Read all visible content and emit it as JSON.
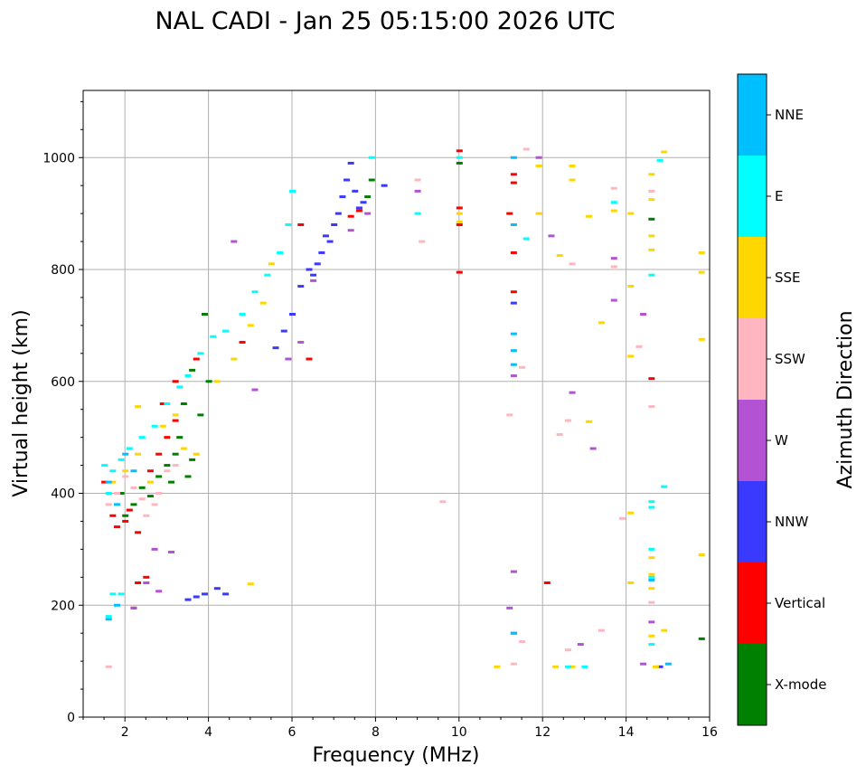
{
  "chart_data": {
    "type": "scatter",
    "title": "NAL CADI - Jan 25 05:15:00 2026 UTC",
    "xlabel": "Frequency (MHz)",
    "ylabel": "Virtual height (km)",
    "xlim": [
      1,
      16
    ],
    "ylim": [
      0,
      1120
    ],
    "xticks": [
      2,
      4,
      6,
      8,
      10,
      12,
      14,
      16
    ],
    "yticks": [
      0,
      200,
      400,
      600,
      800,
      1000
    ],
    "grid": true,
    "colorbar": {
      "title": "Azimuth Direction",
      "categories": [
        {
          "name": "X-mode",
          "color": "#008000"
        },
        {
          "name": "Vertical",
          "color": "#ff0000"
        },
        {
          "name": "NNW",
          "color": "#3a3aff"
        },
        {
          "name": "W",
          "color": "#b452d4"
        },
        {
          "name": "SSW",
          "color": "#ffb6c1"
        },
        {
          "name": "SSE",
          "color": "#ffd700"
        },
        {
          "name": "E",
          "color": "#00ffff"
        },
        {
          "name": "NNE",
          "color": "#00bfff"
        }
      ]
    },
    "series": [
      {
        "name": "X-mode",
        "points": [
          [
            1.9,
            400
          ],
          [
            2.0,
            360
          ],
          [
            2.2,
            380
          ],
          [
            2.4,
            410
          ],
          [
            2.6,
            395
          ],
          [
            2.8,
            430
          ],
          [
            3.0,
            450
          ],
          [
            3.1,
            420
          ],
          [
            3.2,
            470
          ],
          [
            3.3,
            500
          ],
          [
            3.5,
            430
          ],
          [
            3.6,
            460
          ],
          [
            3.4,
            560
          ],
          [
            3.8,
            540
          ],
          [
            4.0,
            600
          ],
          [
            3.9,
            720
          ],
          [
            3.6,
            620
          ],
          [
            7.8,
            930
          ],
          [
            7.9,
            960
          ],
          [
            10.0,
            990
          ],
          [
            14.6,
            890
          ],
          [
            15.8,
            140
          ]
        ]
      },
      {
        "name": "Vertical",
        "points": [
          [
            1.5,
            420
          ],
          [
            1.7,
            360
          ],
          [
            1.8,
            340
          ],
          [
            2.0,
            350
          ],
          [
            2.1,
            370
          ],
          [
            2.3,
            330
          ],
          [
            2.6,
            440
          ],
          [
            2.8,
            470
          ],
          [
            3.0,
            500
          ],
          [
            2.9,
            560
          ],
          [
            3.2,
            530
          ],
          [
            3.5,
            610
          ],
          [
            3.7,
            640
          ],
          [
            3.2,
            600
          ],
          [
            2.2,
            195
          ],
          [
            2.3,
            240
          ],
          [
            2.5,
            250
          ],
          [
            4.8,
            670
          ],
          [
            6.2,
            880
          ],
          [
            6.4,
            640
          ],
          [
            7.4,
            895
          ],
          [
            7.6,
            905
          ],
          [
            10.0,
            1012
          ],
          [
            10.0,
            910
          ],
          [
            10.0,
            880
          ],
          [
            10.0,
            795
          ],
          [
            11.2,
            900
          ],
          [
            11.3,
            970
          ],
          [
            11.3,
            955
          ],
          [
            11.3,
            830
          ],
          [
            11.3,
            760
          ],
          [
            12.1,
            240
          ],
          [
            14.6,
            605
          ]
        ]
      },
      {
        "name": "NNW",
        "points": [
          [
            3.5,
            210
          ],
          [
            3.7,
            215
          ],
          [
            3.9,
            220
          ],
          [
            4.2,
            230
          ],
          [
            4.4,
            220
          ],
          [
            5.6,
            660
          ],
          [
            5.8,
            690
          ],
          [
            6.0,
            720
          ],
          [
            6.2,
            770
          ],
          [
            6.4,
            800
          ],
          [
            6.5,
            790
          ],
          [
            6.6,
            810
          ],
          [
            6.7,
            830
          ],
          [
            6.8,
            860
          ],
          [
            6.9,
            850
          ],
          [
            7.0,
            880
          ],
          [
            7.1,
            900
          ],
          [
            7.2,
            930
          ],
          [
            7.3,
            960
          ],
          [
            7.4,
            990
          ],
          [
            7.5,
            940
          ],
          [
            7.6,
            910
          ],
          [
            7.7,
            920
          ],
          [
            8.2,
            950
          ],
          [
            11.3,
            740
          ],
          [
            11.3,
            150
          ],
          [
            14.8,
            90
          ]
        ]
      },
      {
        "name": "W",
        "points": [
          [
            2.2,
            195
          ],
          [
            2.5,
            240
          ],
          [
            2.7,
            300
          ],
          [
            3.1,
            295
          ],
          [
            2.8,
            225
          ],
          [
            4.6,
            850
          ],
          [
            5.1,
            585
          ],
          [
            5.9,
            640
          ],
          [
            6.2,
            670
          ],
          [
            6.5,
            780
          ],
          [
            7.4,
            870
          ],
          [
            7.8,
            900
          ],
          [
            9.0,
            940
          ],
          [
            11.3,
            610
          ],
          [
            11.3,
            260
          ],
          [
            11.2,
            195
          ],
          [
            11.9,
            1000
          ],
          [
            12.2,
            860
          ],
          [
            12.7,
            580
          ],
          [
            12.9,
            130
          ],
          [
            13.2,
            480
          ],
          [
            13.7,
            820
          ],
          [
            13.7,
            745
          ],
          [
            14.4,
            720
          ],
          [
            14.4,
            95
          ],
          [
            14.6,
            170
          ]
        ]
      },
      {
        "name": "SSW",
        "points": [
          [
            1.6,
            380
          ],
          [
            1.8,
            400
          ],
          [
            2.0,
            430
          ],
          [
            2.2,
            410
          ],
          [
            2.4,
            390
          ],
          [
            2.6,
            420
          ],
          [
            2.8,
            400
          ],
          [
            3.0,
            440
          ],
          [
            2.5,
            360
          ],
          [
            2.7,
            380
          ],
          [
            3.2,
            450
          ],
          [
            1.6,
            90
          ],
          [
            9.0,
            960
          ],
          [
            9.1,
            850
          ],
          [
            9.6,
            385
          ],
          [
            11.2,
            540
          ],
          [
            11.5,
            625
          ],
          [
            11.6,
            1015
          ],
          [
            11.3,
            95
          ],
          [
            11.5,
            135
          ],
          [
            12.4,
            505
          ],
          [
            12.6,
            530
          ],
          [
            12.7,
            810
          ],
          [
            12.6,
            120
          ],
          [
            13.4,
            155
          ],
          [
            13.7,
            945
          ],
          [
            13.7,
            805
          ],
          [
            13.9,
            355
          ],
          [
            14.3,
            662
          ],
          [
            14.6,
            940
          ],
          [
            14.6,
            555
          ],
          [
            14.6,
            205
          ]
        ]
      },
      {
        "name": "SSE",
        "points": [
          [
            1.7,
            420
          ],
          [
            2.0,
            440
          ],
          [
            2.3,
            470
          ],
          [
            2.6,
            420
          ],
          [
            2.9,
            520
          ],
          [
            3.2,
            540
          ],
          [
            3.4,
            480
          ],
          [
            3.7,
            470
          ],
          [
            2.3,
            555
          ],
          [
            4.2,
            600
          ],
          [
            4.6,
            640
          ],
          [
            5.0,
            700
          ],
          [
            5.3,
            740
          ],
          [
            5.5,
            810
          ],
          [
            5.0,
            238
          ],
          [
            10.0,
            900
          ],
          [
            10.0,
            885
          ],
          [
            10.9,
            90
          ],
          [
            11.9,
            900
          ],
          [
            11.9,
            985
          ],
          [
            12.3,
            90
          ],
          [
            12.4,
            825
          ],
          [
            12.7,
            985
          ],
          [
            12.7,
            960
          ],
          [
            12.7,
            90
          ],
          [
            13.1,
            895
          ],
          [
            13.1,
            528
          ],
          [
            13.4,
            705
          ],
          [
            13.7,
            905
          ],
          [
            14.1,
            900
          ],
          [
            14.1,
            770
          ],
          [
            14.1,
            645
          ],
          [
            14.1,
            365
          ],
          [
            14.1,
            240
          ],
          [
            14.6,
            970
          ],
          [
            14.6,
            925
          ],
          [
            14.6,
            860
          ],
          [
            14.6,
            835
          ],
          [
            14.6,
            285
          ],
          [
            14.6,
            255
          ],
          [
            14.6,
            230
          ],
          [
            14.6,
            145
          ],
          [
            14.9,
            1010
          ],
          [
            14.9,
            155
          ],
          [
            15.8,
            830
          ],
          [
            15.8,
            795
          ],
          [
            15.8,
            675
          ],
          [
            15.8,
            290
          ],
          [
            14.7,
            90
          ]
        ]
      },
      {
        "name": "E",
        "points": [
          [
            1.5,
            450
          ],
          [
            1.6,
            400
          ],
          [
            1.7,
            440
          ],
          [
            1.9,
            460
          ],
          [
            2.1,
            480
          ],
          [
            2.4,
            500
          ],
          [
            2.7,
            520
          ],
          [
            3.0,
            560
          ],
          [
            3.3,
            590
          ],
          [
            3.5,
            610
          ],
          [
            3.8,
            650
          ],
          [
            4.1,
            680
          ],
          [
            4.4,
            690
          ],
          [
            4.8,
            720
          ],
          [
            5.1,
            760
          ],
          [
            5.4,
            790
          ],
          [
            5.7,
            830
          ],
          [
            5.9,
            880
          ],
          [
            1.6,
            180
          ],
          [
            1.7,
            220
          ],
          [
            1.9,
            220
          ],
          [
            6.0,
            940
          ],
          [
            7.9,
            1000
          ],
          [
            9.0,
            900
          ],
          [
            10.0,
            1000
          ],
          [
            11.6,
            855
          ],
          [
            12.6,
            90
          ],
          [
            13.0,
            90
          ],
          [
            13.7,
            920
          ],
          [
            14.6,
            790
          ],
          [
            14.6,
            385
          ],
          [
            14.6,
            375
          ],
          [
            14.6,
            300
          ],
          [
            14.6,
            250
          ],
          [
            14.6,
            130
          ],
          [
            14.8,
            995
          ],
          [
            14.9,
            412
          ]
        ]
      },
      {
        "name": "NNE",
        "points": [
          [
            1.6,
            420
          ],
          [
            1.8,
            380
          ],
          [
            2.0,
            470
          ],
          [
            2.2,
            440
          ],
          [
            1.6,
            175
          ],
          [
            1.8,
            200
          ],
          [
            11.3,
            1000
          ],
          [
            11.3,
            685
          ],
          [
            11.3,
            655
          ],
          [
            11.3,
            630
          ],
          [
            11.3,
            880
          ],
          [
            11.3,
            150
          ],
          [
            14.6,
            245
          ],
          [
            15.0,
            95
          ]
        ]
      }
    ]
  }
}
